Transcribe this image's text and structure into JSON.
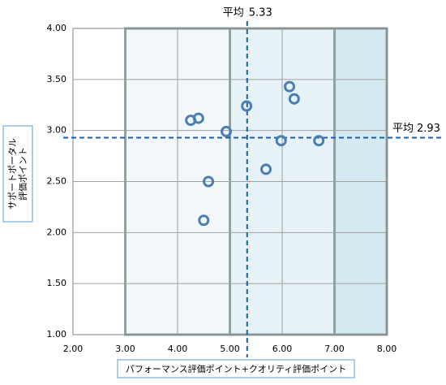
{
  "chart_data": {
    "type": "scatter",
    "x": [
      4.25,
      4.4,
      4.59,
      4.5,
      4.93,
      5.32,
      5.69,
      5.98,
      6.14,
      6.23,
      6.7
    ],
    "values": [
      3.1,
      3.12,
      2.5,
      2.12,
      2.99,
      3.24,
      2.62,
      2.9,
      3.43,
      3.31,
      2.9
    ],
    "color": "#4a7eb5",
    "xlim": [
      2,
      8
    ],
    "ylim": [
      1,
      4
    ],
    "xticks": [
      {
        "value": 2,
        "label": "2.00"
      },
      {
        "value": 3,
        "label": "3.00"
      },
      {
        "value": 4,
        "label": "4.00"
      },
      {
        "value": 5,
        "label": "5.00"
      },
      {
        "value": 6,
        "label": "6.00"
      },
      {
        "value": 7,
        "label": "7.00"
      },
      {
        "value": 8,
        "label": "8.00"
      }
    ],
    "yticks": [
      {
        "value": 1,
        "label": "1.00"
      },
      {
        "value": 1.5,
        "label": "1.50"
      },
      {
        "value": 2,
        "label": "2.00"
      },
      {
        "value": 2.5,
        "label": "2.50"
      },
      {
        "value": 3,
        "label": "3.00"
      },
      {
        "value": 3.5,
        "label": "3.50"
      },
      {
        "value": 4,
        "label": "4.00"
      }
    ],
    "grid": true,
    "xlabel": "パフォーマンス評価ポイント+クオリティ評価ポイント",
    "ylabel": [
      "サポートポータル",
      "評価ポイント"
    ],
    "bands": [
      {
        "from": 3,
        "to": 5,
        "color": "#f2f8fa"
      },
      {
        "from": 5,
        "to": 7,
        "color": "#e6f2f5"
      },
      {
        "from": 7,
        "to": 8,
        "color": "#d5eaf0"
      }
    ],
    "x_average": {
      "label": "平均",
      "value": 5.33
    },
    "y_average": {
      "label": "平均",
      "value": 2.93
    }
  }
}
